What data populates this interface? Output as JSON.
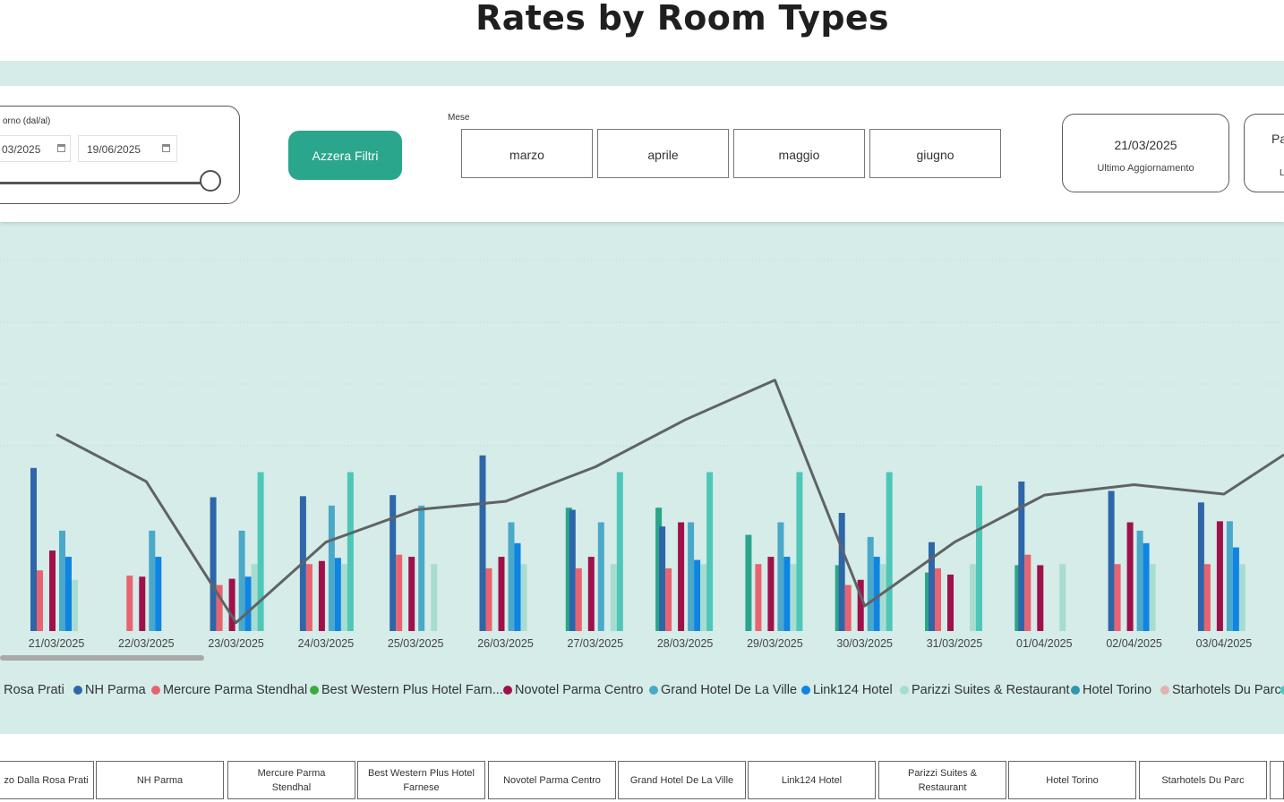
{
  "page": {
    "title": "Rates by Room Types"
  },
  "date_filter": {
    "label": "orno (dal/al)",
    "from": "03/2025",
    "to": "19/06/2025"
  },
  "reset_button": {
    "label": "Azzera Filtri"
  },
  "month_filter": {
    "label": "Mese",
    "options": [
      "marzo",
      "aprile",
      "maggio",
      "giugno"
    ]
  },
  "update_card": {
    "date": "21/03/2025",
    "label": "Ultimo Aggiornamento"
  },
  "extra_card": {
    "line1": "Pa",
    "line2": "Li"
  },
  "colors": {
    "accent": "#2aa68c",
    "background_band": "#d5ece8",
    "line": "#5f6366"
  },
  "legend": [
    {
      "label": "a Rosa Prati",
      "color": "#2ba58a"
    },
    {
      "label": "NH Parma",
      "color": "#2e66a8"
    },
    {
      "label": "Mercure Parma Stendhal",
      "color": "#e8636f"
    },
    {
      "label": "Best Western Plus Hotel Farn...",
      "color": "#3cab3b"
    },
    {
      "label": "Novotel Parma Centro",
      "color": "#a0104b"
    },
    {
      "label": "Grand Hotel De La Ville",
      "color": "#4aa8c9"
    },
    {
      "label": "Link124 Hotel",
      "color": "#0f84e3"
    },
    {
      "label": "Parizzi Suites & Restaurant",
      "color": "#a9dcd1"
    },
    {
      "label": "Hotel Torino",
      "color": "#2e97b1"
    },
    {
      "label": "Starhotels Du Parc",
      "color": "#e3b2b2"
    },
    {
      "label": "",
      "color": "#4ec7b8"
    }
  ],
  "hotel_buttons": [
    "zo Dalla Rosa Prati",
    "NH Parma",
    "Mercure Parma\nStendhal",
    "Best Western Plus Hotel\nFarnese",
    "Novotel Parma Centro",
    "Grand Hotel De La Ville",
    "Link124 Hotel",
    "Parizzi Suites &\nRestaurant",
    "Hotel Torino",
    "Starhotels Du Parc"
  ],
  "chart_data": {
    "type": "bar",
    "categories": [
      "21/03/2025",
      "22/03/2025",
      "23/03/2025",
      "24/03/2025",
      "25/03/2025",
      "26/03/2025",
      "27/03/2025",
      "28/03/2025",
      "29/03/2025",
      "30/03/2025",
      "31/03/2025",
      "01/04/2025",
      "02/04/2025",
      "03/04/2025"
    ],
    "series": [
      {
        "name": "a Rosa Prati",
        "values": [
          null,
          null,
          null,
          null,
          null,
          null,
          118,
          118,
          92,
          63,
          56,
          63,
          null,
          null
        ]
      },
      {
        "name": "NH Parma",
        "values": [
          156,
          null,
          128,
          129,
          130,
          168,
          116,
          100,
          null,
          113,
          85,
          143,
          134,
          123
        ]
      },
      {
        "name": "Mercure Parma Stendhal",
        "values": [
          58,
          53,
          44,
          64,
          73,
          60,
          60,
          60,
          64,
          44,
          60,
          73,
          64,
          64
        ]
      },
      {
        "name": "Novotel Parma Centro",
        "values": [
          77,
          52,
          50,
          67,
          71,
          71,
          71,
          104,
          71,
          49,
          54,
          63,
          104,
          105
        ]
      },
      {
        "name": "Grand Hotel De La Ville",
        "values": [
          96,
          96,
          96,
          120,
          120,
          104,
          104,
          104,
          104,
          90,
          null,
          null,
          96,
          105
        ]
      },
      {
        "name": "Link124 Hotel",
        "values": [
          71,
          71,
          52,
          70,
          null,
          84,
          null,
          68,
          71,
          71,
          null,
          null,
          84,
          80
        ]
      },
      {
        "name": "Parizzi Suites & Restaurant",
        "values": [
          49,
          null,
          64,
          64,
          64,
          64,
          64,
          64,
          64,
          64,
          64,
          64,
          64,
          64
        ]
      },
      {
        "name": "",
        "values": [
          null,
          null,
          152,
          152,
          null,
          null,
          152,
          152,
          152,
          152,
          139,
          null,
          null,
          null
        ]
      }
    ],
    "line": [
      188,
      143,
      8,
      85,
      116,
      124,
      157,
      202,
      240,
      24,
      85,
      130,
      140,
      131
    ],
    "ylim": [
      0,
      250
    ]
  }
}
